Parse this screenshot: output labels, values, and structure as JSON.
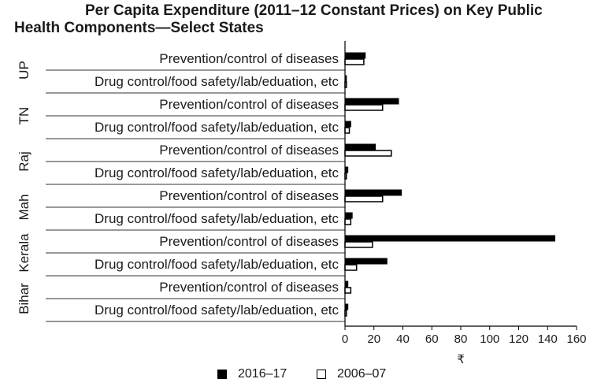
{
  "chart_data": {
    "type": "bar",
    "orientation": "horizontal",
    "title": "Per Capita Expenditure (2011–12 Constant Prices) on Key Public Health Components—Select States",
    "title_lines": [
      "Per Capita Expenditure (2011–12 Constant Prices) on Key Public",
      "Health Components—Select States"
    ],
    "xlabel": "₹",
    "xlim": [
      0,
      160
    ],
    "xticks": [
      "0",
      "20",
      "40",
      "60",
      "80",
      "100",
      "120",
      "140",
      "160"
    ],
    "groups": [
      {
        "state": "UP",
        "rows": [
          {
            "label": "Prevention/control of diseases",
            "values": [
              14,
              13
            ]
          },
          {
            "label": "Drug control/food safety/lab/eduation, etc",
            "values": [
              1,
              1
            ]
          }
        ]
      },
      {
        "state": "TN",
        "rows": [
          {
            "label": "Prevention/control of diseases",
            "values": [
              37,
              26
            ]
          },
          {
            "label": "Drug control/food safety/lab/eduation, etc",
            "values": [
              4,
              3
            ]
          }
        ]
      },
      {
        "state": "Raj",
        "rows": [
          {
            "label": "Prevention/control of diseases",
            "values": [
              21,
              32
            ]
          },
          {
            "label": "Drug control/food safety/lab/eduation, etc",
            "values": [
              2,
              1
            ]
          }
        ]
      },
      {
        "state": "Mah",
        "rows": [
          {
            "label": "Prevention/control of diseases",
            "values": [
              39,
              26
            ]
          },
          {
            "label": "Drug control/food safety/lab/eduation, etc",
            "values": [
              5,
              4
            ]
          }
        ]
      },
      {
        "state": "Kerala",
        "rows": [
          {
            "label": "Prevention/control of diseases",
            "values": [
              145,
              19
            ]
          },
          {
            "label": "Drug control/food safety/lab/eduation, etc",
            "values": [
              29,
              8
            ]
          }
        ]
      },
      {
        "state": "Bihar",
        "rows": [
          {
            "label": "Prevention/control of diseases",
            "values": [
              2,
              4
            ]
          },
          {
            "label": "Drug control/food safety/lab/eduation, etc",
            "values": [
              2,
              1
            ]
          }
        ]
      }
    ],
    "series": [
      {
        "name": "2016–17",
        "color": "#000000",
        "fill": "solid"
      },
      {
        "name": "2006–07",
        "color": "#ffffff",
        "fill": "outline"
      }
    ],
    "legend_position": "bottom",
    "grid": false
  }
}
